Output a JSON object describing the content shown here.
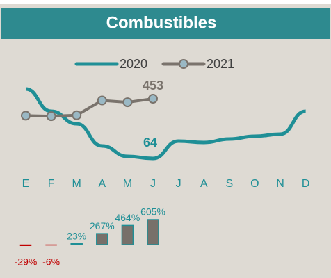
{
  "chart_data": [
    {
      "type": "line",
      "title": "Combustibles",
      "categories": [
        "E",
        "F",
        "M",
        "A",
        "M",
        "J",
        "J",
        "A",
        "S",
        "O",
        "N",
        "D"
      ],
      "series": [
        {
          "name": "2020",
          "color": "#1f8f96",
          "values": [
            364,
            268,
            214,
            118,
            73,
            64,
            139,
            133,
            148,
            160,
            169,
            268
          ]
        },
        {
          "name": "2021",
          "color": "#7a736c",
          "marker_color": "#9ab8c4",
          "axis": "y2",
          "values": [
            258,
            252,
            263,
            433,
            412,
            453,
            null,
            null,
            null,
            null,
            null,
            null
          ]
        }
      ],
      "ylim": [
        28,
        448
      ],
      "y2lim": [
        -331,
        789
      ],
      "legend": "top"
    },
    {
      "type": "bar",
      "values": [
        -29,
        -6,
        23,
        267,
        464,
        605
      ],
      "value_labels": [
        "-29%",
        "-6%",
        "23%",
        "267%",
        "464%",
        "605%"
      ],
      "color": "#77706a",
      "edge_color": "#1f8f96",
      "negative_color": "#c00000",
      "ylim": [
        -134,
        706
      ]
    }
  ]
}
